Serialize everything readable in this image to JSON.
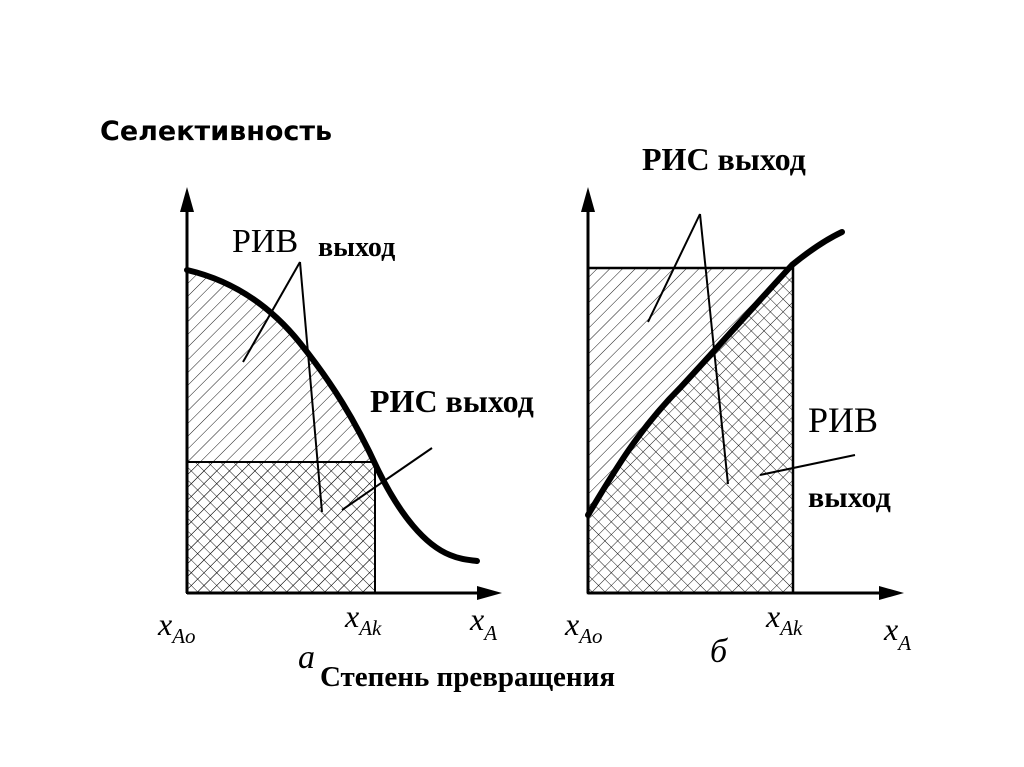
{
  "y_axis_title": "Селективность",
  "x_axis_title": "Степень превращения",
  "panel_a": {
    "letter": "а",
    "label_riv": "РИВ",
    "label_riv_suffix": "выход",
    "label_ris": "РИС выход",
    "tick_start": {
      "main": "x",
      "sub": "Ao"
    },
    "tick_end": {
      "main": "x",
      "sub": "Ak"
    },
    "axis_end": {
      "main": "x",
      "sub": "A"
    }
  },
  "panel_b": {
    "letter": "б",
    "label_ris": "РИС выход",
    "label_riv": "РИВ",
    "label_riv_suffix": "выход",
    "tick_start": {
      "main": "x",
      "sub": "Ao"
    },
    "tick_end": {
      "main": "x",
      "sub": "Ak"
    },
    "axis_end": {
      "main": "x",
      "sub": "A"
    }
  }
}
